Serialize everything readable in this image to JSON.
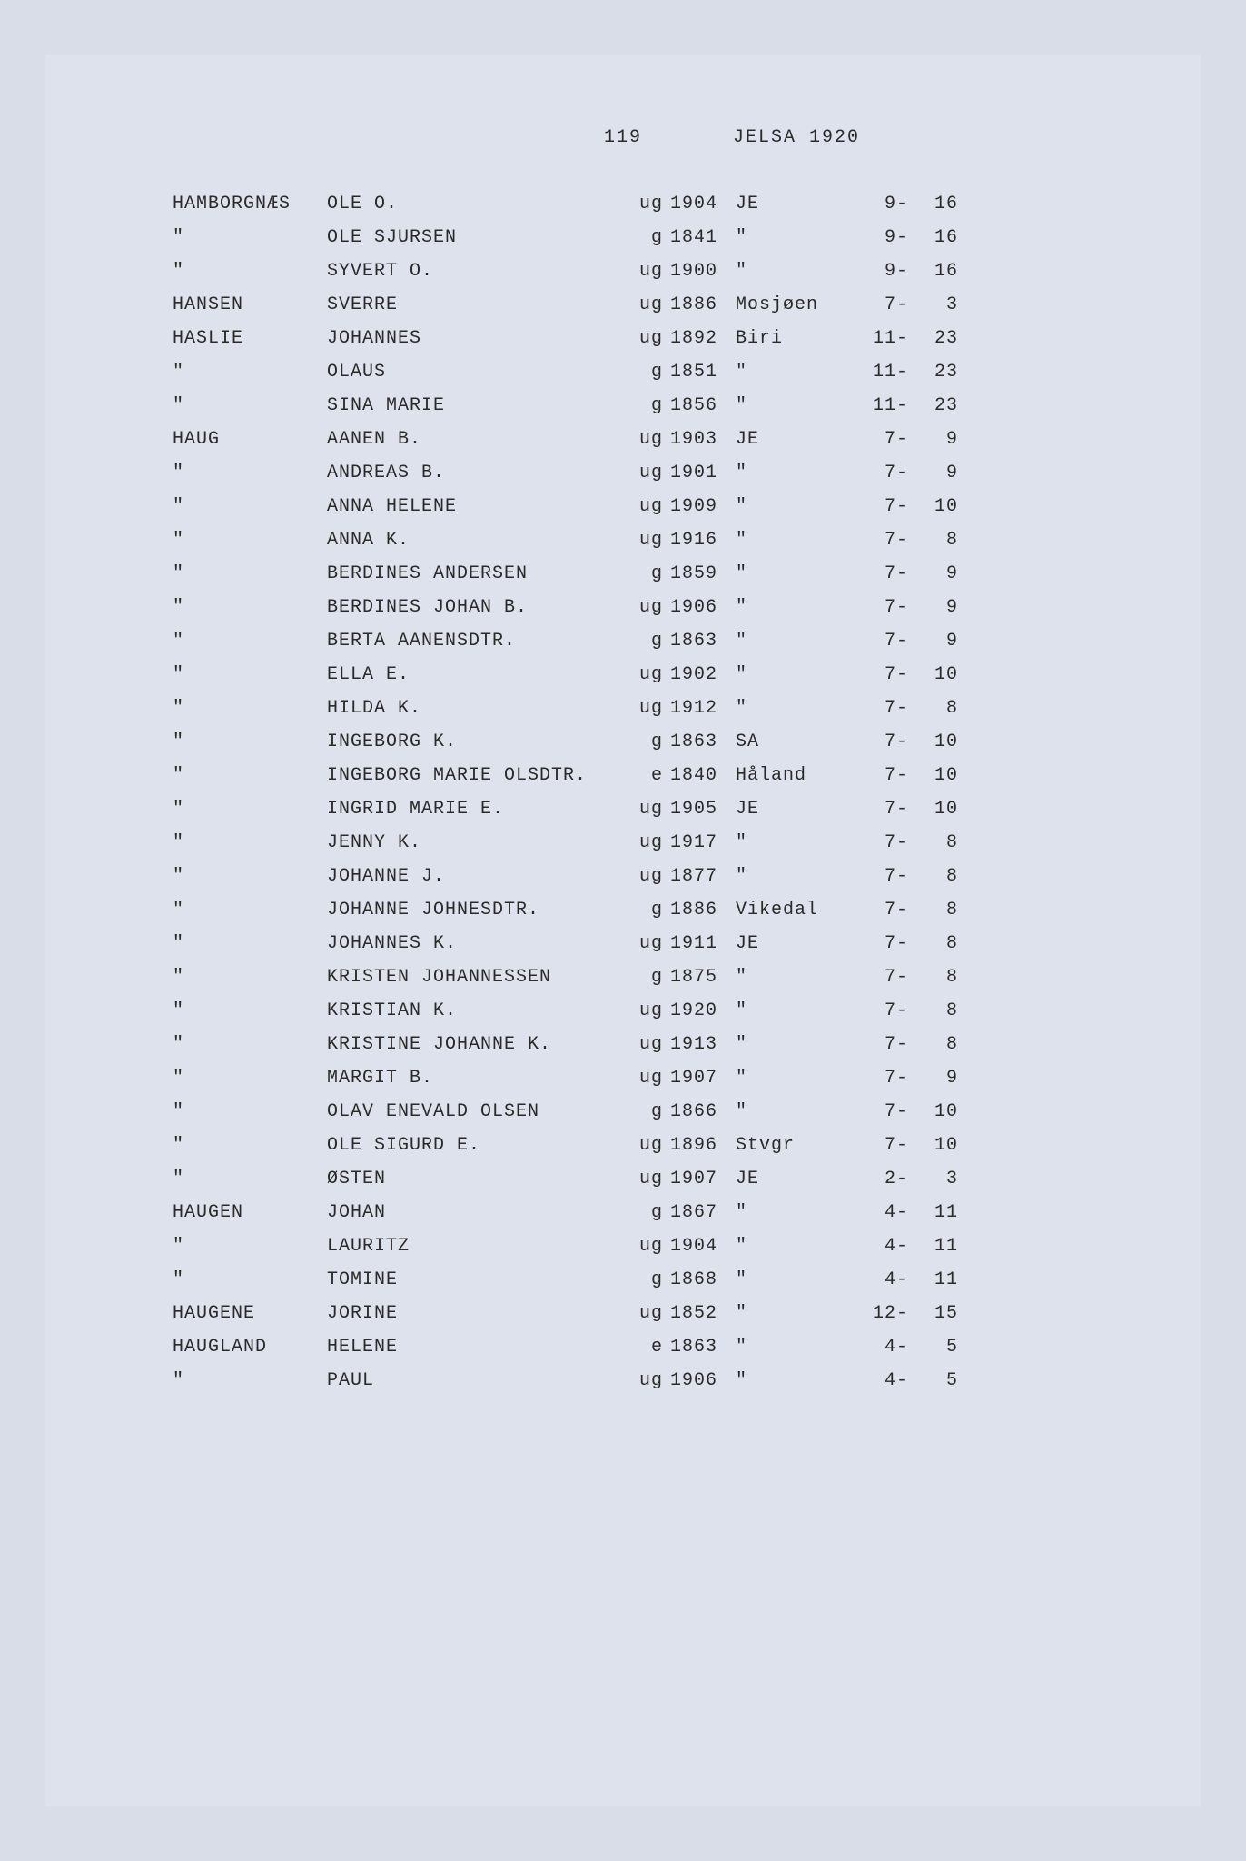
{
  "header": {
    "pageNumber": "119",
    "title": "JELSA 1920"
  },
  "table": {
    "columns": [
      "surname",
      "name",
      "status",
      "year",
      "place",
      "ref1",
      "ref2"
    ],
    "rows": [
      {
        "surname": "HAMBORGNÆS",
        "name": "OLE O.",
        "status": "ug",
        "year": "1904",
        "place": "JE",
        "ref1": "9-",
        "ref2": "16"
      },
      {
        "surname": "\"",
        "name": "OLE SJURSEN",
        "status": "g",
        "year": "1841",
        "place": "\"",
        "ref1": "9-",
        "ref2": "16"
      },
      {
        "surname": "\"",
        "name": "SYVERT O.",
        "status": "ug",
        "year": "1900",
        "place": "\"",
        "ref1": "9-",
        "ref2": "16"
      },
      {
        "surname": "HANSEN",
        "name": "SVERRE",
        "status": "ug",
        "year": "1886",
        "place": "Mosjøen",
        "ref1": "7-",
        "ref2": "3"
      },
      {
        "surname": "HASLIE",
        "name": "JOHANNES",
        "status": "ug",
        "year": "1892",
        "place": "Biri",
        "ref1": "11-",
        "ref2": "23"
      },
      {
        "surname": "\"",
        "name": "OLAUS",
        "status": "g",
        "year": "1851",
        "place": "\"",
        "ref1": "11-",
        "ref2": "23"
      },
      {
        "surname": "\"",
        "name": "SINA MARIE",
        "status": "g",
        "year": "1856",
        "place": "\"",
        "ref1": "11-",
        "ref2": "23"
      },
      {
        "surname": "HAUG",
        "name": "AANEN B.",
        "status": "ug",
        "year": "1903",
        "place": "JE",
        "ref1": "7-",
        "ref2": "9"
      },
      {
        "surname": "\"",
        "name": "ANDREAS B.",
        "status": "ug",
        "year": "1901",
        "place": "\"",
        "ref1": "7-",
        "ref2": "9"
      },
      {
        "surname": "\"",
        "name": "ANNA HELENE",
        "status": "ug",
        "year": "1909",
        "place": "\"",
        "ref1": "7-",
        "ref2": "10"
      },
      {
        "surname": "\"",
        "name": "ANNA K.",
        "status": "ug",
        "year": "1916",
        "place": "\"",
        "ref1": "7-",
        "ref2": "8"
      },
      {
        "surname": "\"",
        "name": "BERDINES ANDERSEN",
        "status": "g",
        "year": "1859",
        "place": "\"",
        "ref1": "7-",
        "ref2": "9"
      },
      {
        "surname": "\"",
        "name": "BERDINES JOHAN B.",
        "status": "ug",
        "year": "1906",
        "place": "\"",
        "ref1": "7-",
        "ref2": "9"
      },
      {
        "surname": "\"",
        "name": "BERTA AANENSDTR.",
        "status": "g",
        "year": "1863",
        "place": "\"",
        "ref1": "7-",
        "ref2": "9"
      },
      {
        "surname": "\"",
        "name": "ELLA E.",
        "status": "ug",
        "year": "1902",
        "place": "\"",
        "ref1": "7-",
        "ref2": "10"
      },
      {
        "surname": "\"",
        "name": "HILDA K.",
        "status": "ug",
        "year": "1912",
        "place": "\"",
        "ref1": "7-",
        "ref2": "8"
      },
      {
        "surname": "\"",
        "name": "INGEBORG K.",
        "status": "g",
        "year": "1863",
        "place": "SA",
        "ref1": "7-",
        "ref2": "10"
      },
      {
        "surname": "\"",
        "name": "INGEBORG MARIE OLSDTR.",
        "status": "e",
        "year": "1840",
        "place": "Håland",
        "ref1": "7-",
        "ref2": "10"
      },
      {
        "surname": "\"",
        "name": "INGRID MARIE E.",
        "status": "ug",
        "year": "1905",
        "place": "JE",
        "ref1": "7-",
        "ref2": "10"
      },
      {
        "surname": "\"",
        "name": "JENNY K.",
        "status": "ug",
        "year": "1917",
        "place": "\"",
        "ref1": "7-",
        "ref2": "8"
      },
      {
        "surname": "\"",
        "name": "JOHANNE J.",
        "status": "ug",
        "year": "1877",
        "place": "\"",
        "ref1": "7-",
        "ref2": "8"
      },
      {
        "surname": "\"",
        "name": "JOHANNE JOHNESDTR.",
        "status": "g",
        "year": "1886",
        "place": "Vikedal",
        "ref1": "7-",
        "ref2": "8"
      },
      {
        "surname": "\"",
        "name": "JOHANNES K.",
        "status": "ug",
        "year": "1911",
        "place": "JE",
        "ref1": "7-",
        "ref2": "8"
      },
      {
        "surname": "\"",
        "name": "KRISTEN JOHANNESSEN",
        "status": "g",
        "year": "1875",
        "place": "\"",
        "ref1": "7-",
        "ref2": "8"
      },
      {
        "surname": "\"",
        "name": "KRISTIAN K.",
        "status": "ug",
        "year": "1920",
        "place": "\"",
        "ref1": "7-",
        "ref2": "8"
      },
      {
        "surname": "\"",
        "name": "KRISTINE JOHANNE K.",
        "status": "ug",
        "year": "1913",
        "place": "\"",
        "ref1": "7-",
        "ref2": "8"
      },
      {
        "surname": "\"",
        "name": "MARGIT B.",
        "status": "ug",
        "year": "1907",
        "place": "\"",
        "ref1": "7-",
        "ref2": "9"
      },
      {
        "surname": "\"",
        "name": "OLAV ENEVALD OLSEN",
        "status": "g",
        "year": "1866",
        "place": "\"",
        "ref1": "7-",
        "ref2": "10"
      },
      {
        "surname": "\"",
        "name": "OLE SIGURD E.",
        "status": "ug",
        "year": "1896",
        "place": "Stvgr",
        "ref1": "7-",
        "ref2": "10"
      },
      {
        "surname": "\"",
        "name": "ØSTEN",
        "status": "ug",
        "year": "1907",
        "place": "JE",
        "ref1": "2-",
        "ref2": "3"
      },
      {
        "surname": "HAUGEN",
        "name": "JOHAN",
        "status": "g",
        "year": "1867",
        "place": "\"",
        "ref1": "4-",
        "ref2": "11"
      },
      {
        "surname": "\"",
        "name": "LAURITZ",
        "status": "ug",
        "year": "1904",
        "place": "\"",
        "ref1": "4-",
        "ref2": "11"
      },
      {
        "surname": "\"",
        "name": "TOMINE",
        "status": "g",
        "year": "1868",
        "place": "\"",
        "ref1": "4-",
        "ref2": "11"
      },
      {
        "surname": "HAUGENE",
        "name": "JORINE",
        "status": "ug",
        "year": "1852",
        "place": "\"",
        "ref1": "12-",
        "ref2": "15"
      },
      {
        "surname": "HAUGLAND",
        "name": "HELENE",
        "status": "e",
        "year": "1863",
        "place": "\"",
        "ref1": "4-",
        "ref2": "5"
      },
      {
        "surname": "\"",
        "name": "PAUL",
        "status": "ug",
        "year": "1906",
        "place": "\"",
        "ref1": "4-",
        "ref2": "5"
      }
    ]
  },
  "styling": {
    "background_color": "#dde2ec",
    "outer_background_color": "#d8dde8",
    "text_color": "#2a2a2a",
    "font_family": "Courier New",
    "font_size": 20,
    "row_gap": 14
  }
}
